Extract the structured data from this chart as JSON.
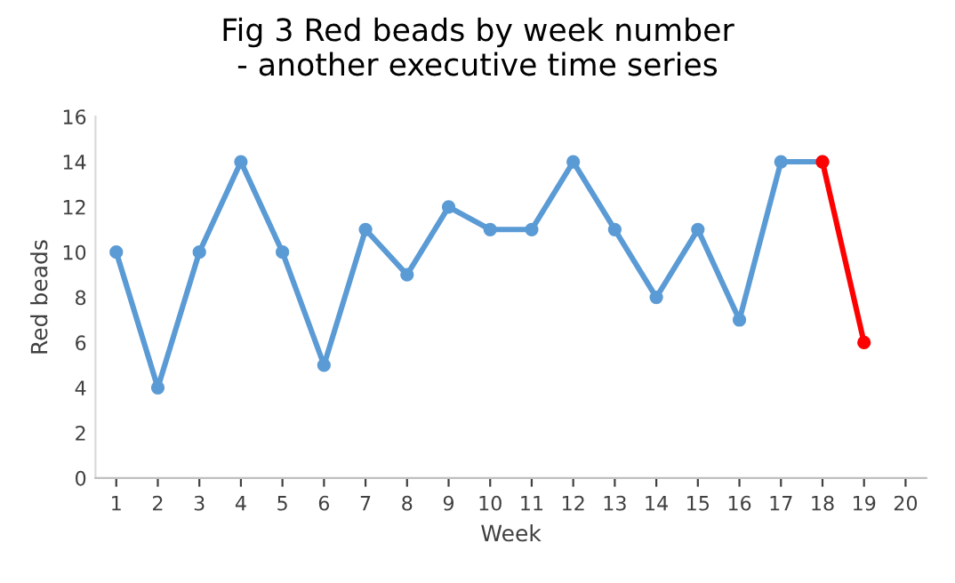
{
  "chart_data": {
    "type": "line",
    "title": "Fig 3 Red beads by week number\n- another executive time series",
    "xlabel": "Week",
    "ylabel": "Red beads",
    "categories": [
      "1",
      "2",
      "3",
      "4",
      "5",
      "6",
      "7",
      "8",
      "9",
      "10",
      "11",
      "12",
      "13",
      "14",
      "15",
      "16",
      "17",
      "18",
      "19",
      "20"
    ],
    "series": [
      {
        "color": "#5b9bd5",
        "values": [
          10,
          4,
          10,
          14,
          10,
          5,
          11,
          9,
          12,
          11,
          11,
          14,
          11,
          8,
          11,
          7,
          14,
          14,
          null,
          null
        ]
      },
      {
        "color": "#ff0000",
        "values": [
          null,
          null,
          null,
          null,
          null,
          null,
          null,
          null,
          null,
          null,
          null,
          null,
          null,
          null,
          null,
          null,
          null,
          14,
          6,
          null
        ]
      }
    ],
    "ylim": [
      0,
      16
    ],
    "yticks": [
      0,
      2,
      4,
      6,
      8,
      10,
      12,
      14,
      16
    ],
    "marker": "circle",
    "line_style": "solid",
    "grid": false
  }
}
